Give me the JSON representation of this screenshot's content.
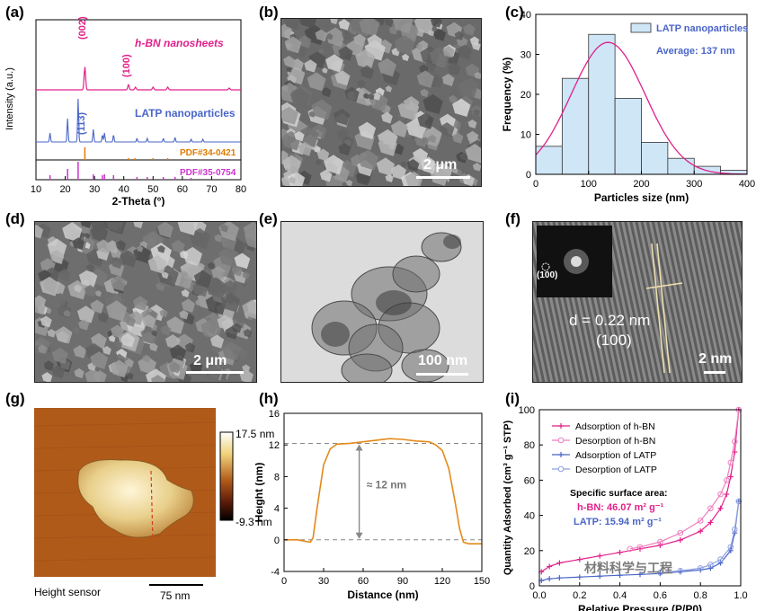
{
  "panels": {
    "a": "(a)",
    "b": "(b)",
    "c": "(c)",
    "d": "(d)",
    "e": "(e)",
    "f": "(f)",
    "g": "(g)",
    "h": "(h)",
    "i": "(i)"
  },
  "xrd": {
    "ylabel": "Intensity (a.u.)",
    "xlabel": "2-Theta (°)",
    "xticks": [
      "10",
      "20",
      "30",
      "40",
      "50",
      "60",
      "70",
      "80"
    ],
    "hbn_label": "h-BN nanosheets",
    "latp_label": "LATP nanoparticles",
    "peak_002": "(002)",
    "peak_100": "(100)",
    "peak_113": "(113)",
    "pdf_hbn": "PDF#34-0421",
    "pdf_latp": "PDF#35-0754",
    "colors": {
      "hbn": "#e0218a",
      "latp": "#4a66c8",
      "pdf_hbn": "#e07b00",
      "pdf_latp": "#cc33cc"
    }
  },
  "sem_b": {
    "scale": "2 μm"
  },
  "sem_d": {
    "scale": "2 μm"
  },
  "tem_e": {
    "scale": "100 nm"
  },
  "hrtem_f": {
    "fft_label": "(100)",
    "d_text": "d = 0.22 nm",
    "plane": "(100)",
    "scale": "2 nm"
  },
  "afm": {
    "max": "17.5 nm",
    "min": "-9.3 nm",
    "caption": "Height sensor",
    "scale": "75 nm"
  },
  "chart_data": [
    {
      "id": "c",
      "type": "bar",
      "xlabel": "Particles size (nm)",
      "ylabel": "Frequency (%)",
      "legend": "LATP nanoparticles",
      "annotation": "Average: 137 nm",
      "xlim": [
        0,
        400
      ],
      "ylim": [
        0,
        40
      ],
      "xticks": [
        "0",
        "100",
        "200",
        "300",
        "400"
      ],
      "yticks": [
        "0",
        "10",
        "20",
        "30",
        "40"
      ],
      "bins": [
        [
          0,
          50
        ],
        [
          50,
          100
        ],
        [
          100,
          150
        ],
        [
          150,
          200
        ],
        [
          200,
          250
        ],
        [
          250,
          300
        ],
        [
          300,
          350
        ],
        [
          350,
          400
        ]
      ],
      "values": [
        7,
        24,
        35,
        19,
        8,
        4,
        2,
        1
      ],
      "fit": {
        "mean": 137,
        "sigma": 70,
        "peak": 33
      }
    },
    {
      "id": "h",
      "type": "line",
      "xlabel": "Distance (nm)",
      "ylabel": "Height (nm)",
      "annotation": "≈ 12 nm",
      "xlim": [
        0,
        150
      ],
      "ylim": [
        -4,
        16
      ],
      "xticks": [
        "0",
        "30",
        "60",
        "90",
        "120",
        "150"
      ],
      "yticks": [
        "-4",
        "0",
        "4",
        "8",
        "12",
        "16"
      ],
      "x": [
        0,
        10,
        20,
        22,
        25,
        30,
        35,
        40,
        50,
        60,
        70,
        80,
        90,
        100,
        110,
        115,
        120,
        125,
        130,
        133,
        136,
        140,
        150
      ],
      "y": [
        0,
        0,
        -0.3,
        0.3,
        4,
        9.5,
        11.5,
        12.1,
        12.2,
        12.4,
        12.6,
        12.8,
        12.7,
        12.5,
        12.4,
        12.0,
        11.3,
        9.0,
        4.5,
        1.5,
        -0.3,
        -0.5,
        -0.5
      ]
    },
    {
      "id": "i",
      "type": "line",
      "xlabel": "Relative Pressure (P/P0)",
      "ylabel": "Quantity Adsorbed (cm³ g⁻¹ STP)",
      "xlim": [
        0,
        1.0
      ],
      "ylim": [
        0,
        100
      ],
      "xticks": [
        "0.0",
        "0.2",
        "0.4",
        "0.6",
        "0.8",
        "1.0"
      ],
      "yticks": [
        "0",
        "20",
        "40",
        "60",
        "80",
        "100"
      ],
      "legend": [
        "Adsorption of h-BN",
        "Desorption of h-BN",
        "Adsorption of LATP",
        "Desorption of LATP"
      ],
      "ssa_title": "Specific surface area:",
      "ssa_hbn": "h-BN: 46.07 m² g⁻¹",
      "ssa_latp": "LATP: 15.94 m² g⁻¹",
      "series": [
        {
          "name": "Adsorption of h-BN",
          "x": [
            0.01,
            0.05,
            0.1,
            0.2,
            0.3,
            0.4,
            0.5,
            0.6,
            0.7,
            0.8,
            0.85,
            0.9,
            0.93,
            0.95,
            0.97,
            0.99
          ],
          "y": [
            8,
            11,
            13,
            15,
            17,
            19,
            21,
            23,
            26,
            31,
            36,
            44,
            52,
            62,
            76,
            100
          ]
        },
        {
          "name": "Desorption of h-BN",
          "x": [
            0.99,
            0.97,
            0.95,
            0.93,
            0.9,
            0.85,
            0.8,
            0.7,
            0.6,
            0.5,
            0.45
          ],
          "y": [
            100,
            82,
            70,
            60,
            52,
            44,
            37,
            30,
            25,
            22,
            21
          ]
        },
        {
          "name": "Adsorption of LATP",
          "x": [
            0.01,
            0.05,
            0.1,
            0.2,
            0.3,
            0.4,
            0.5,
            0.6,
            0.7,
            0.8,
            0.85,
            0.9,
            0.95,
            0.97,
            0.99
          ],
          "y": [
            3,
            4,
            4.5,
            5,
            5.5,
            6,
            6.5,
            7,
            8,
            9,
            10,
            13,
            20,
            30,
            48
          ]
        },
        {
          "name": "Desorption of LATP",
          "x": [
            0.99,
            0.97,
            0.95,
            0.9,
            0.85,
            0.8,
            0.7,
            0.6
          ],
          "y": [
            48,
            32,
            22,
            15,
            12,
            10,
            8.5,
            7.5
          ]
        }
      ]
    }
  ],
  "watermark": "材料科学与工程"
}
